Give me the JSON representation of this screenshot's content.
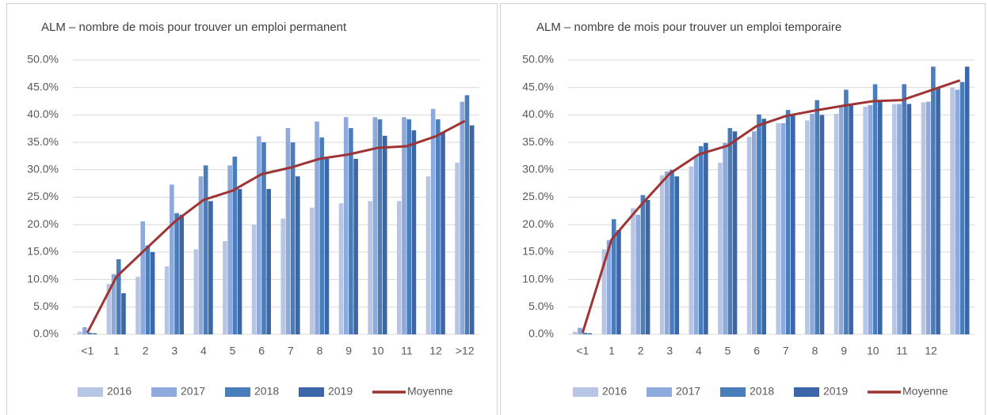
{
  "chart_data": [
    {
      "type": "bar",
      "title": "ALM – nombre de mois pour trouver un emploi permanent",
      "categories": [
        "<1",
        "1",
        "2",
        "3",
        "4",
        "5",
        "6",
        "7",
        "8",
        "9",
        "10",
        "11",
        "12",
        ">12"
      ],
      "ylim": [
        0,
        50
      ],
      "yticks": [
        {
          "value": 0,
          "label": "0.0%"
        },
        {
          "value": 5,
          "label": "5.0%"
        },
        {
          "value": 10,
          "label": "10.0%"
        },
        {
          "value": 15,
          "label": "15.0%"
        },
        {
          "value": 20,
          "label": "20.0%"
        },
        {
          "value": 25,
          "label": "25.0%"
        },
        {
          "value": 30,
          "label": "30.0%"
        },
        {
          "value": 35,
          "label": "35.0%"
        },
        {
          "value": 40,
          "label": "40.0%"
        },
        {
          "value": 45,
          "label": "45.0%"
        },
        {
          "value": 50,
          "label": "50.0%"
        }
      ],
      "grid": true,
      "legend": "bottom",
      "series": [
        {
          "name": "2016",
          "color": "#b8c6e3",
          "values": [
            0.5,
            9.2,
            10.5,
            12.4,
            15.5,
            17,
            20,
            21.1,
            23.1,
            23.9,
            24.3,
            24.3,
            28.8,
            31.3
          ]
        },
        {
          "name": "2017",
          "color": "#8ea9db",
          "values": [
            1.3,
            11,
            20.6,
            27.3,
            28.8,
            30.8,
            36.1,
            37.6,
            38.8,
            39.6,
            39.6,
            39.6,
            41.1,
            42.4
          ]
        },
        {
          "name": "2018",
          "color": "#4a7ebb",
          "values": [
            0.3,
            13.7,
            16.2,
            22.1,
            30.8,
            32.4,
            35,
            35,
            35.9,
            37.6,
            39.2,
            39.2,
            39.2,
            43.6
          ]
        },
        {
          "name": "2019",
          "color": "#3b66a8",
          "values": [
            0.2,
            7.5,
            15,
            21.8,
            24.3,
            26.5,
            26.5,
            28.8,
            32,
            32,
            36.2,
            37.2,
            36.9,
            38.1
          ]
        },
        {
          "name": "Moyenne",
          "color": "#9e3434",
          "mark": "line",
          "values": [
            0.3,
            10.5,
            15.5,
            20.5,
            24.5,
            26.2,
            29.2,
            30.4,
            32,
            32.8,
            34,
            34.3,
            36.1,
            38.9
          ]
        }
      ]
    },
    {
      "type": "bar",
      "title": "ALM – nombre de mois pour trouver un emploi temporaire",
      "categories": [
        "<1",
        "1",
        "2",
        "3",
        "4",
        "5",
        "6",
        "7",
        "8",
        "9",
        "10",
        "11",
        "12",
        null
      ],
      "ylim": [
        0,
        50
      ],
      "yticks": [
        {
          "value": 0,
          "label": "0.0%"
        },
        {
          "value": 5,
          "label": "5.0%"
        },
        {
          "value": 10,
          "label": "10.0%"
        },
        {
          "value": 15,
          "label": "15.0%"
        },
        {
          "value": 20,
          "label": "20.0%"
        },
        {
          "value": 25,
          "label": "25.0%"
        },
        {
          "value": 30,
          "label": "30.0%"
        },
        {
          "value": 35,
          "label": "35.0%"
        },
        {
          "value": 40,
          "label": "40.0%"
        },
        {
          "value": 45,
          "label": "45.0%"
        },
        {
          "value": 50,
          "label": "50.0%"
        }
      ],
      "grid": true,
      "legend": "bottom",
      "series": [
        {
          "name": "2016",
          "color": "#b8c6e3",
          "values": [
            0.5,
            15.5,
            23,
            29,
            30.6,
            31.3,
            36,
            38.5,
            39,
            40.2,
            41.5,
            42,
            42.3,
            45
          ]
        },
        {
          "name": "2017",
          "color": "#8ea9db",
          "values": [
            1.2,
            17.2,
            21.8,
            29.7,
            32.5,
            34.9,
            37,
            38.5,
            40.2,
            41.8,
            41.8,
            42,
            42.4,
            44.6
          ]
        },
        {
          "name": "2018",
          "color": "#4a7ebb",
          "values": [
            0.3,
            21,
            25.4,
            30,
            34.3,
            37.6,
            40.1,
            40.9,
            42.7,
            44.6,
            45.6,
            45.6,
            48.8,
            46
          ]
        },
        {
          "name": "2019",
          "color": "#3b66a8",
          "values": [
            0.2,
            19,
            24.5,
            28.8,
            34.9,
            37,
            39.3,
            40,
            40,
            42,
            42.5,
            42,
            45,
            48.8
          ]
        },
        {
          "name": "Moyenne",
          "color": "#9e3434",
          "mark": "line",
          "values": [
            0.3,
            17.3,
            23.5,
            29.3,
            32.8,
            34.4,
            38,
            39.8,
            40.8,
            41.7,
            42.5,
            42.7,
            44.5,
            46.3
          ]
        }
      ]
    }
  ]
}
